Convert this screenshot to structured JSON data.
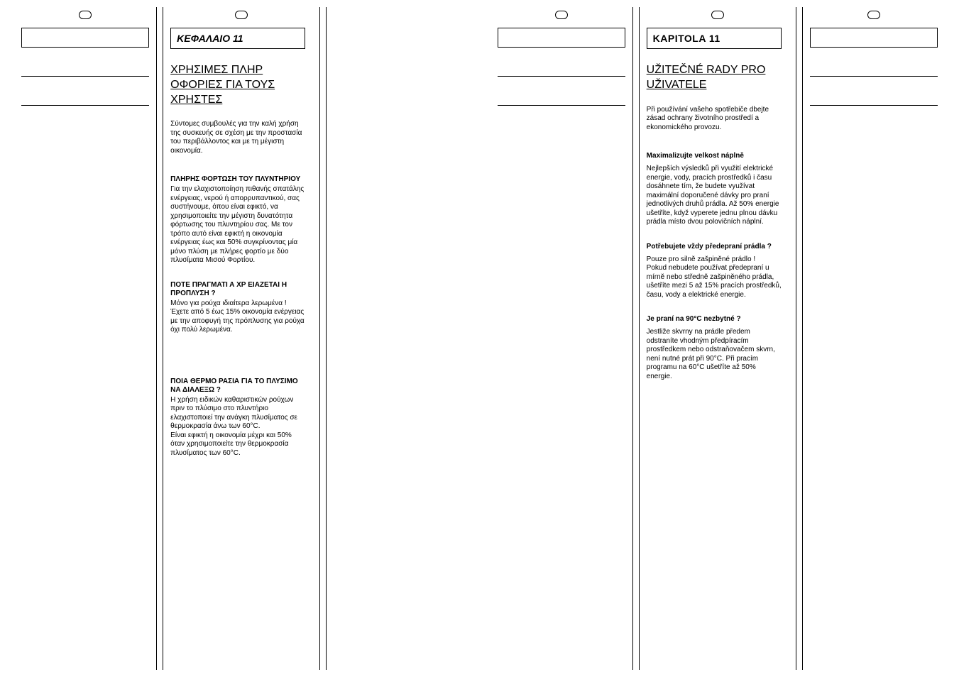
{
  "pages": [
    {
      "lang": "el",
      "chapter_label": "ΚΕΦΑΛΑΙΟ 11",
      "main_heading": "ΧΡΗΣΙΜΕΣ ΠΛΗΡ ΟΦΟΡΙΕΣ ΓΙΑ ΤΟΥΣ ΧΡΗΣΤΕΣ",
      "intro": "Σύντομες συμβουλές για την καλή χρήση της συσκευής σε σχέση με την προστασία του περιβάλλοντος και με τη μέγιστη οικονομία.",
      "sections": [
        {
          "title": "ΠΛΗΡΗΣ  ΦΟΡΤΩΣΗ ΤΟΥ ΠΛΥΝΤΗΡΙΟΥ",
          "body": "Για την ελαχιστοποίηση πιθανής σπατάλης ενέργειας, νερού ή απορρυπαντικού, σας συστήνουμε, όπου είναι εφικτό, να χρησιμοποιείτε την μέγιστη δυνατότητα φόρτωσης του πλυντηρίου σας.  Με τον τρόπο αυτό είναι εφικτή η οικονομία ενέργειας έως και 50% συγκρίνοντας μία μόνο πλύση με πλήρες φορτίο με  δύο πλυσίματα Μισού Φορτίου."
        },
        {
          "title": "ΠΟΤΕ ΠΡΑΓΜΑΤΙ  Α ΧΡ ΕΙΑΖΕΤΑΙ Η ΠΡΟΠΛΥΣΗ  ?",
          "body": "Μόνο για ρούχα ιδιαίτερα λερωμένα !\nΈχετε  από 5 έως 15% οικονομία ενέργειας  με την αποφυγή της πρόπλυσης για ρούχα όχι πολύ λερωμένα.",
          "gap_after": true
        },
        {
          "title": "ΠΟΙΑ ΘΕΡΜΟ  ΡΑΣΙΑ  ΓΙΑ ΤΟ ΠΛΥΣΙΜΟ ΝΑ ΔΙΑΛΕΞΩ  ?",
          "body": "Η χρήση ειδικών καθαριστικών ρούχων πριν το πλύσιμο στο πλυντήριο ελαχιστοποιεί την ανάγκη  πλυσίματος σε θερμοκρασία άνω των 60°C.\nΕίναι εφικτή η οικονομία μέχρι και 50% όταν χρησιμοποιείτε την θερμοκρασία πλυσίματος των 60°C."
        }
      ]
    },
    {
      "lang": "cs",
      "chapter_label": "KAPITOLA 11",
      "main_heading": "UŽITEČNÉ RADY PRO UŽIVATELE",
      "intro": "Při používání vašeho spotřebiče dbejte zásad ochrany životního prostředí a ekonomického provozu.",
      "sections": [
        {
          "title": "Maximalizujte velkost náplně",
          "body": "Nejlepších výsledků při využití elektrické energie, vody, pracích prostředků i času dosáhnete tím, že budete využívat maximální doporučené dávky pro praní jednotlivých druhů prádla. Až 50% energie ušetříte, když vyperete jednu plnou dávku prádla místo dvou polovičních náplní.",
          "title_spaced": true
        },
        {
          "title": "Potřebujete vždy předepraní prádla ?",
          "body": "Pouze pro silně zašpiněné prádlo !\nPokud nebudete používat předepraní u mírně nebo středně zašpiněného prádla, ušetříte mezi 5 až 15% pracích prostředků, času, vody a elektrické energie.",
          "title_spaced": true
        },
        {
          "title": "Je praní na 90°C nezbytné ?",
          "body": "Jestliže skvrny na prádle předem odstraníte vhodným předpíracím prostředkem nebo odstraňovačem skvrn, není nutné prát při 90°C. Při pracím programu na 60°C ušetříte až 50% energie.",
          "title_spaced": true
        }
      ]
    }
  ],
  "colors": {
    "text": "#000000",
    "background": "#ffffff",
    "border": "#000000"
  },
  "fonts": {
    "body_size_pt": 10,
    "heading_size_pt": 16,
    "chapter_size_pt": 14
  }
}
